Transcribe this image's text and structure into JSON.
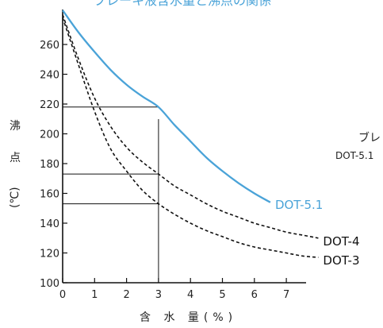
{
  "chart_data": {
    "type": "line",
    "xlabel": "含 水 量(%)",
    "ylabel_top": "沸",
    "ylabel_mid": "点",
    "ylabel_unit": "(℃)",
    "xlim": [
      0,
      7.8
    ],
    "ylim": [
      100,
      290
    ],
    "xticks": [
      "0",
      "1",
      "2",
      "3",
      "4",
      "5",
      "6",
      "7"
    ],
    "yticks": [
      "100",
      "120",
      "140",
      "160",
      "180",
      "200",
      "220",
      "240",
      "260"
    ],
    "grid": false,
    "series": [
      {
        "name": "DOT-5.1",
        "color": "#4aa3d8",
        "dash": "solid",
        "x": [
          0,
          0.5,
          1,
          1.5,
          2,
          2.5,
          3,
          3.5,
          4,
          4.5,
          5,
          5.5,
          6,
          6.5
        ],
        "y": [
          283,
          268,
          255,
          243,
          233,
          225,
          218,
          206,
          195,
          184,
          175,
          167,
          160,
          154
        ]
      },
      {
        "name": "DOT-4",
        "color": "#111111",
        "dash": "dashed",
        "x": [
          0,
          0.5,
          1,
          1.5,
          2,
          2.5,
          3,
          3.5,
          4,
          4.5,
          5,
          5.5,
          6,
          6.5,
          7,
          7.5,
          8
        ],
        "y": [
          280,
          250,
          224,
          205,
          191,
          181,
          173,
          165,
          159,
          153,
          148,
          144,
          140,
          137,
          134,
          132,
          130
        ]
      },
      {
        "name": "DOT-3",
        "color": "#111111",
        "dash": "dashed",
        "x": [
          0,
          0.5,
          1,
          1.5,
          2,
          2.5,
          3,
          3.5,
          4,
          4.5,
          5,
          5.5,
          6,
          6.5,
          7,
          7.5,
          8
        ],
        "y": [
          278,
          246,
          215,
          190,
          175,
          162,
          153,
          146,
          140,
          135,
          131,
          127,
          124,
          122,
          120,
          118,
          117
        ]
      }
    ],
    "reference_x": 3,
    "reference_points": [
      {
        "series": "DOT-5.1",
        "y": 218
      },
      {
        "series": "DOT-4",
        "y": 173
      },
      {
        "series": "DOT-3",
        "y": 153
      }
    ],
    "crop_text": {
      "top": "ブレーキ液含水量と沸点の関係",
      "right_1": "ブレ",
      "right_2": "DOT-5.1"
    }
  }
}
